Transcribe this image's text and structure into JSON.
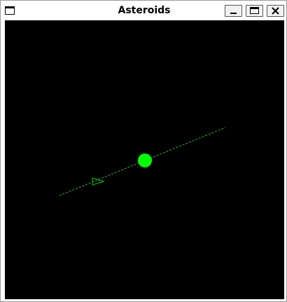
{
  "window": {
    "title": "Asteroids"
  },
  "colors": {
    "background": "#000000",
    "game_green": "#00ff00",
    "trail_green": "#22bb22"
  },
  "icons": {
    "window_menu": "window-menu-icon",
    "minimize": "minimize-icon",
    "maximize": "maximize-icon",
    "close": "close-icon"
  },
  "game": {
    "objects": [
      "laser-trail",
      "asteroid",
      "ship"
    ]
  }
}
